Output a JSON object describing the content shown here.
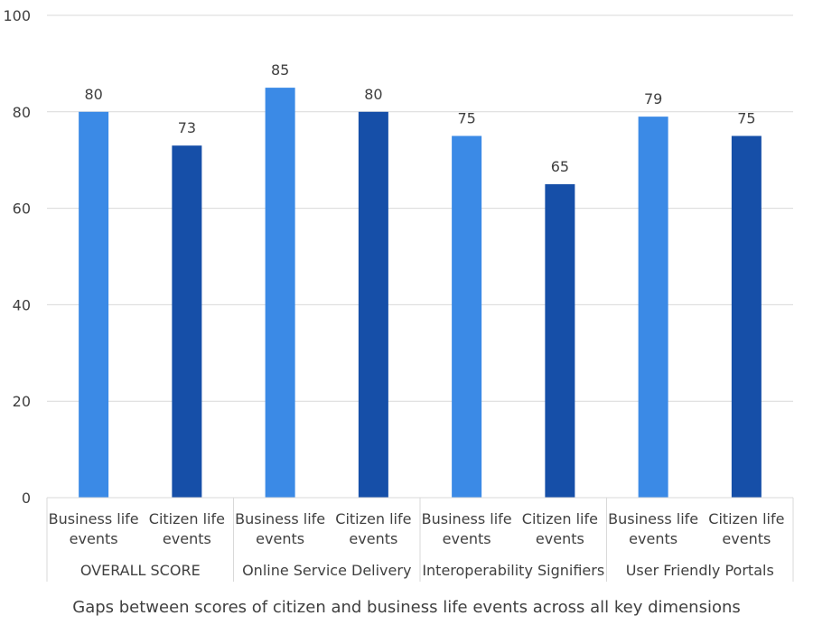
{
  "chart_data": {
    "type": "bar",
    "groups": [
      "OVERALL SCORE",
      "Online Service Delivery",
      "Interoperability Signifiers",
      "User Friendly Portals"
    ],
    "categories": [
      "Business life events",
      "Citizen life events",
      "Business life events",
      "Citizen life events",
      "Business life events",
      "Citizen life events",
      "Business life events",
      "Citizen life events"
    ],
    "values": [
      80,
      73,
      85,
      80,
      75,
      65,
      79,
      75
    ],
    "bar_colors": [
      "#3b8ae6",
      "#164fa8"
    ],
    "yticks": [
      "0",
      "20",
      "40",
      "60",
      "80",
      "100"
    ],
    "ylim": [
      0,
      100
    ],
    "grid": true,
    "caption": "Gaps between scores of citizen and business life events across all key dimensions"
  }
}
